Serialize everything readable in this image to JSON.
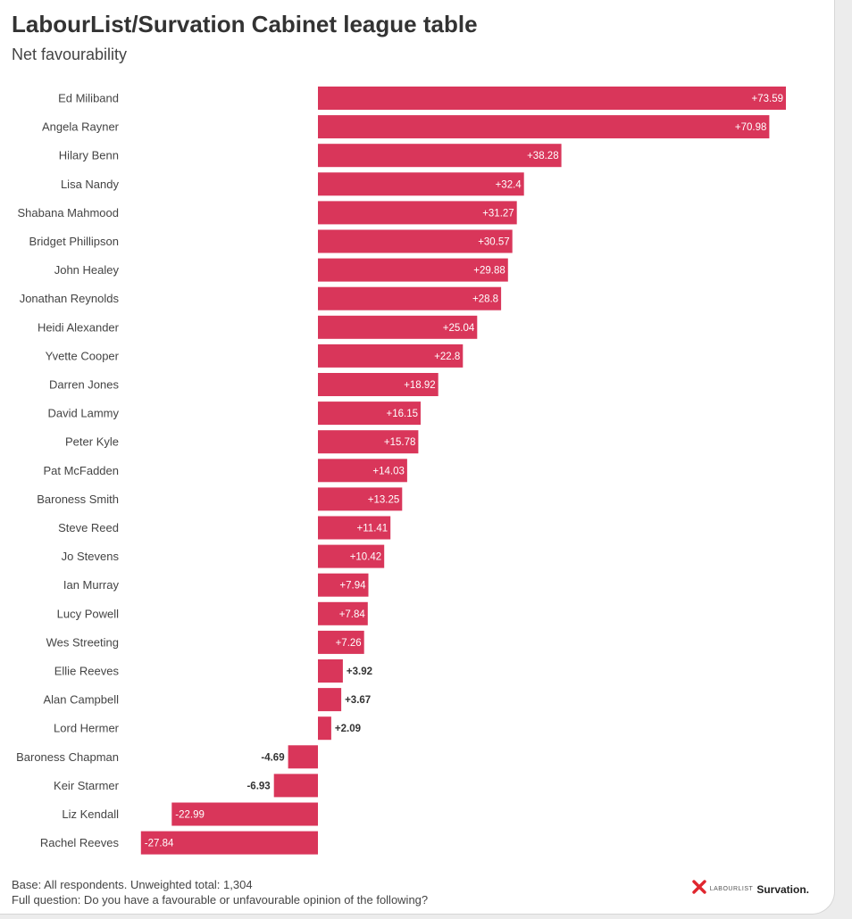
{
  "header": {
    "title": "LabourList/Survation Cabinet league table",
    "subtitle": "Net favourability"
  },
  "chart_data": {
    "type": "bar",
    "orientation": "horizontal",
    "title": "LabourList/Survation Cabinet league table",
    "subtitle": "Net favourability",
    "xlabel": "",
    "ylabel": "",
    "xlim": [
      -30,
      76
    ],
    "grid": false,
    "bar_color": "#d9365a",
    "categories": [
      "Ed Miliband",
      "Angela Rayner",
      "Hilary Benn",
      "Lisa Nandy",
      "Shabana Mahmood",
      "Bridget Phillipson",
      "John Healey",
      "Jonathan Reynolds",
      "Heidi Alexander",
      "Yvette Cooper",
      "Darren Jones",
      "David Lammy",
      "Peter Kyle",
      "Pat McFadden",
      "Baroness Smith",
      "Steve Reed",
      "Jo Stevens",
      "Ian Murray",
      "Lucy Powell",
      "Wes Streeting",
      "Ellie Reeves",
      "Alan Campbell",
      "Lord Hermer",
      "Baroness Chapman",
      "Keir Starmer",
      "Liz Kendall",
      "Rachel Reeves"
    ],
    "values": [
      73.59,
      70.98,
      38.28,
      32.4,
      31.27,
      30.57,
      29.88,
      28.8,
      25.04,
      22.8,
      18.92,
      16.15,
      15.78,
      14.03,
      13.25,
      11.41,
      10.42,
      7.94,
      7.84,
      7.26,
      3.92,
      3.67,
      2.09,
      -4.69,
      -6.93,
      -22.99,
      -27.84
    ],
    "labels": [
      "+73.59",
      "+70.98",
      "+38.28",
      "+32.4",
      "+31.27",
      "+30.57",
      "+29.88",
      "+28.8",
      "+25.04",
      "+22.8",
      "+18.92",
      "+16.15",
      "+15.78",
      "+14.03",
      "+13.25",
      "+11.41",
      "+10.42",
      "+7.94",
      "+7.84",
      "+7.26",
      "+3.92",
      "+3.67",
      "+2.09",
      "-4.69",
      "-6.93",
      "-22.99",
      "-27.84"
    ]
  },
  "footer": {
    "base": "Base: All respondents. Unweighted total: 1,304",
    "question": "Full question: Do you have a favourable or unfavourable opinion of the following?"
  },
  "logos": {
    "labourlist": "LABOURLIST",
    "survation": "Survation."
  },
  "colors": {
    "bar": "#d9365a",
    "labourlist_mark": "#e0262e"
  }
}
